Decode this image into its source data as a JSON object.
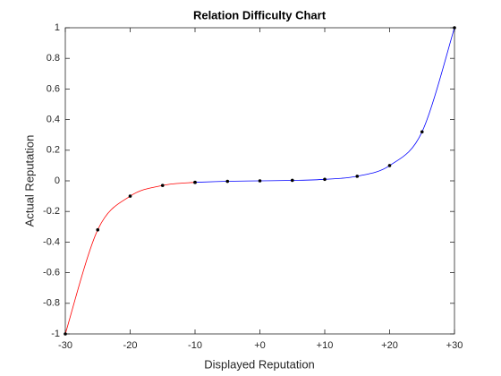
{
  "chart_data": {
    "type": "line",
    "title": "Relation Difficulty Chart",
    "x_label": "Displayed Reputation",
    "y_label": "Actual Reputation",
    "xlim": [
      -30,
      30
    ],
    "ylim": [
      -1,
      1
    ],
    "xticks": [
      -30,
      -20,
      -10,
      {
        "value": 0,
        "label": "+0"
      },
      {
        "value": 10,
        "label": "+10"
      },
      {
        "value": 20,
        "label": "+20"
      },
      {
        "value": 30,
        "label": "+30"
      }
    ],
    "yticks": [
      -1,
      -0.8,
      -0.6,
      -0.4,
      -0.2,
      0,
      0.2,
      0.4,
      0.6,
      0.8,
      1
    ],
    "marker_color": "#000000",
    "series": [
      {
        "color": "#ff0000",
        "x": [
          -30,
          -25,
          -20,
          -15,
          -10
        ],
        "values": [
          -1,
          -0.32,
          -0.1,
          -0.03,
          -0.01
        ]
      },
      {
        "color": "#0000ff",
        "x": [
          -10,
          -5,
          0,
          5,
          10,
          15,
          20,
          25,
          30
        ],
        "values": [
          -0.01,
          -0.003,
          0,
          0.003,
          0.01,
          0.03,
          0.1,
          0.32,
          1
        ]
      }
    ]
  }
}
